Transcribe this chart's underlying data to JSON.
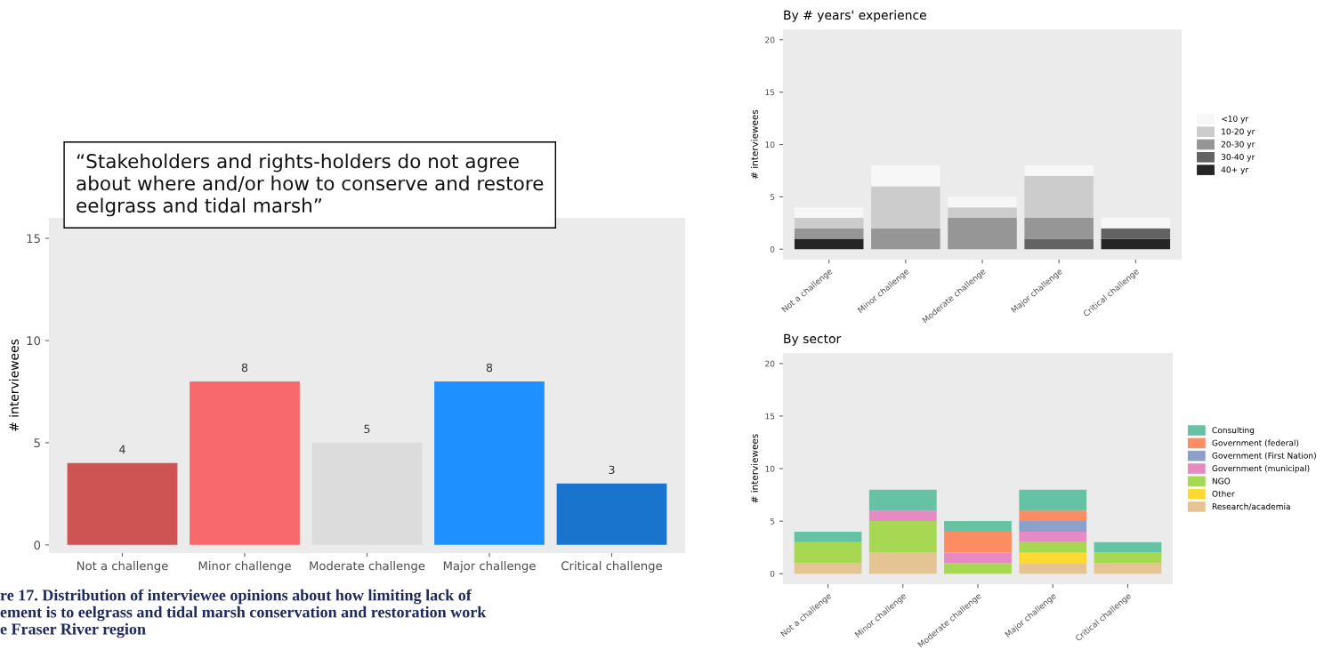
{
  "chart_data": [
    {
      "type": "bar",
      "categories": [
        "Not a challenge",
        "Minor challenge",
        "Moderate challenge",
        "Major challenge",
        "Critical challenge"
      ],
      "values": [
        4,
        8,
        5,
        8,
        3
      ],
      "colors": [
        "#cd5452",
        "#f8696b",
        "#dcdcdc",
        "#1e90ff",
        "#1874cd"
      ],
      "ylabel": "# interviewees",
      "ylim": [
        -0.4,
        16
      ],
      "yticks": [
        0,
        5,
        10,
        15
      ],
      "data_labels": true,
      "grid": false,
      "annotations": [
        "“Stakeholders and rights-holders do not agree\nabout where and/or how to conserve and restore\neelgrass and tidal marsh”",
        "re 17. Distribution of interviewee opinions about how limiting lack of\nement is to eelgrass and tidal marsh conservation and restoration work\ne Fraser River region"
      ]
    },
    {
      "type": "bar",
      "title": "By # years' experience",
      "stacked": true,
      "categories": [
        "Not a challenge",
        "Minor challenge",
        "Moderate challenge",
        "Major challenge",
        "Critical challenge"
      ],
      "series": [
        {
          "name": "40+ yr",
          "color": "#252525",
          "values": [
            1,
            0,
            0,
            0,
            1
          ]
        },
        {
          "name": "30-40 yr",
          "color": "#636363",
          "values": [
            0,
            0,
            0,
            1,
            1
          ]
        },
        {
          "name": "20-30 yr",
          "color": "#969696",
          "values": [
            1,
            2,
            3,
            2,
            0
          ]
        },
        {
          "name": "10-20 yr",
          "color": "#cccccc",
          "values": [
            1,
            4,
            1,
            4,
            0
          ]
        },
        {
          "name": "<10 yr",
          "color": "#f7f7f7",
          "values": [
            1,
            2,
            1,
            1,
            1
          ]
        }
      ],
      "ylabel": "# interviewees",
      "ylim": [
        -1,
        21
      ],
      "yticks": [
        0,
        5,
        10,
        15,
        20
      ],
      "legend": "right",
      "grid": false
    },
    {
      "type": "bar",
      "title": "By sector",
      "stacked": true,
      "categories": [
        "Not a challenge",
        "Minor challenge",
        "Moderate challenge",
        "Major challenge",
        "Critical challenge"
      ],
      "series": [
        {
          "name": "Research/academia",
          "color": "#e5c494",
          "values": [
            1,
            2,
            0,
            1,
            1
          ]
        },
        {
          "name": "Other",
          "color": "#ffd92f",
          "values": [
            0,
            0,
            0,
            1,
            0
          ]
        },
        {
          "name": "NGO",
          "color": "#a6d854",
          "values": [
            2,
            3,
            1,
            1,
            1
          ]
        },
        {
          "name": "Government (municipal)",
          "color": "#e78ac3",
          "values": [
            0,
            1,
            1,
            1,
            0
          ]
        },
        {
          "name": "Government (First Nation)",
          "color": "#8da0cb",
          "values": [
            0,
            0,
            0,
            1,
            0
          ]
        },
        {
          "name": "Government (federal)",
          "color": "#fc8d62",
          "values": [
            0,
            0,
            2,
            1,
            0
          ]
        },
        {
          "name": "Consulting",
          "color": "#66c2a5",
          "values": [
            1,
            2,
            1,
            2,
            1
          ]
        }
      ],
      "ylabel": "# interviewees",
      "ylim": [
        -1,
        21
      ],
      "yticks": [
        0,
        5,
        10,
        15,
        20
      ],
      "legend": "right",
      "grid": false
    }
  ]
}
